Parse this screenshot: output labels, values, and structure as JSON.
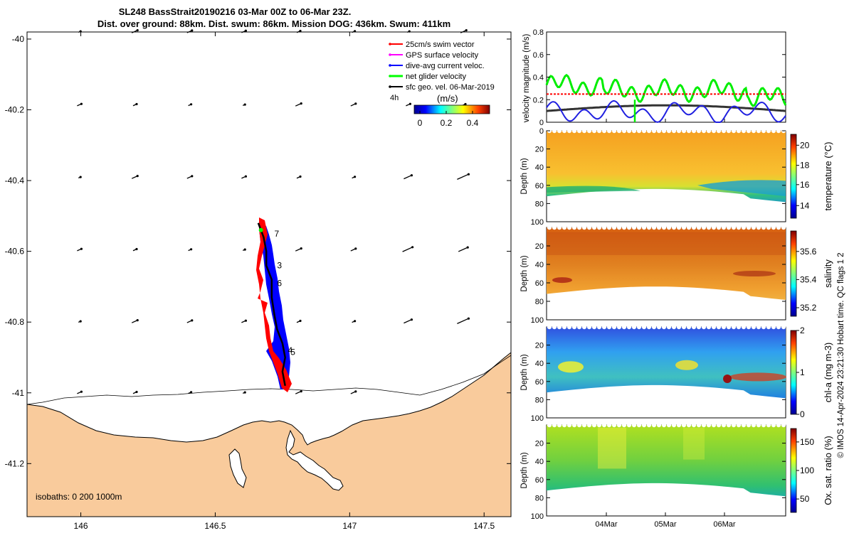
{
  "title": {
    "line1": "SL248 BassStrait20190216 03-Mar 00Z to 06-Mar 23Z.",
    "line2": "Dist. over ground: 88km. Dist. swum: 86km. Mission DOG: 436km. Swum: 411km"
  },
  "map": {
    "lon_range": [
      145.8,
      147.6
    ],
    "lat_range": [
      -41.35,
      -39.98
    ],
    "xticks": [
      146,
      146.5,
      147,
      147.5
    ],
    "xtick_labels": [
      "146",
      "146.5",
      "147",
      "147.5"
    ],
    "yticks": [
      -40,
      -40.2,
      -40.4,
      -40.6,
      -40.8,
      -41,
      -41.2
    ],
    "ytick_labels": [
      "-40",
      "-40.2",
      "-40.4",
      "-40.6",
      "-40.8",
      "-41",
      "-41.2"
    ],
    "land_color": "#f9cb9c",
    "track_color": "#0000ff",
    "swim_color": "#ff0000",
    "day_labels": [
      "7",
      "3",
      "6",
      "4",
      "5"
    ],
    "day_label_positions": [
      {
        "lon": 146.72,
        "lat": -40.55
      },
      {
        "lon": 146.73,
        "lat": -40.64
      },
      {
        "lon": 146.73,
        "lat": -40.69
      },
      {
        "lon": 146.77,
        "lat": -40.88
      },
      {
        "lon": 146.78,
        "lat": -40.885
      }
    ],
    "glider_track": [
      {
        "lon": 146.66,
        "lat": -40.52
      },
      {
        "lon": 146.68,
        "lat": -40.56
      },
      {
        "lon": 146.69,
        "lat": -40.6
      },
      {
        "lon": 146.69,
        "lat": -40.64
      },
      {
        "lon": 146.71,
        "lat": -40.68
      },
      {
        "lon": 146.71,
        "lat": -40.73
      },
      {
        "lon": 146.72,
        "lat": -40.78
      },
      {
        "lon": 146.73,
        "lat": -40.82
      },
      {
        "lon": 146.75,
        "lat": -40.86
      },
      {
        "lon": 146.76,
        "lat": -40.9
      },
      {
        "lon": 146.75,
        "lat": -40.94
      },
      {
        "lon": 146.76,
        "lat": -40.98
      }
    ],
    "legend": {
      "items": [
        {
          "label": "25cm/s swim vector",
          "color": "#ff0000"
        },
        {
          "label": "GPS surface velocity",
          "color": "#ff00ff"
        },
        {
          "label": "dive-avg current veloc.",
          "color": "#0000ff"
        },
        {
          "label": "net glider velocity",
          "color": "#00ff00"
        },
        {
          "label": "sfc geo. vel. 06-Mar-2019",
          "color": "#000000"
        }
      ],
      "timestep": "4h",
      "colorbar_unit": "(m/s)",
      "colorbar_ticks": [
        "0",
        "0.2",
        "0.4"
      ]
    },
    "isobaths_label": "isobaths: 0   200  1000m"
  },
  "velocity_panel": {
    "ylabel": "velocity magnitude (m/s)",
    "yticks": [
      "0",
      "0.2",
      "0.4",
      "0.6",
      "0.8"
    ],
    "ylim": [
      0,
      0.8
    ],
    "swim_speed_ref": 0.25
  },
  "sections": [
    {
      "ylabel": "Depth (m)",
      "cblabel": "temperature (°C)",
      "cbticks": [
        "14",
        "16",
        "18",
        "20"
      ]
    },
    {
      "ylabel": "Depth (m)",
      "cblabel": "salinity",
      "cbticks": [
        "35.2",
        "35.4",
        "35.6"
      ]
    },
    {
      "ylabel": "Depth (m)",
      "cblabel": "chl-a (mg m-3)",
      "cbticks": [
        "0",
        "1",
        "2"
      ]
    },
    {
      "ylabel": "Depth (m)",
      "cblabel": "Ox. sat. ratio (%)",
      "cbticks": [
        "50",
        "100",
        "150"
      ]
    }
  ],
  "depth_ticks": [
    "0",
    "20",
    "40",
    "60",
    "80",
    "100"
  ],
  "time_ticks": [
    "04Mar",
    "05Mar",
    "06Mar"
  ],
  "credit": "© IMOS 14-Apr-2024 23:21:30 Hobart time. QC flags 1  2"
}
